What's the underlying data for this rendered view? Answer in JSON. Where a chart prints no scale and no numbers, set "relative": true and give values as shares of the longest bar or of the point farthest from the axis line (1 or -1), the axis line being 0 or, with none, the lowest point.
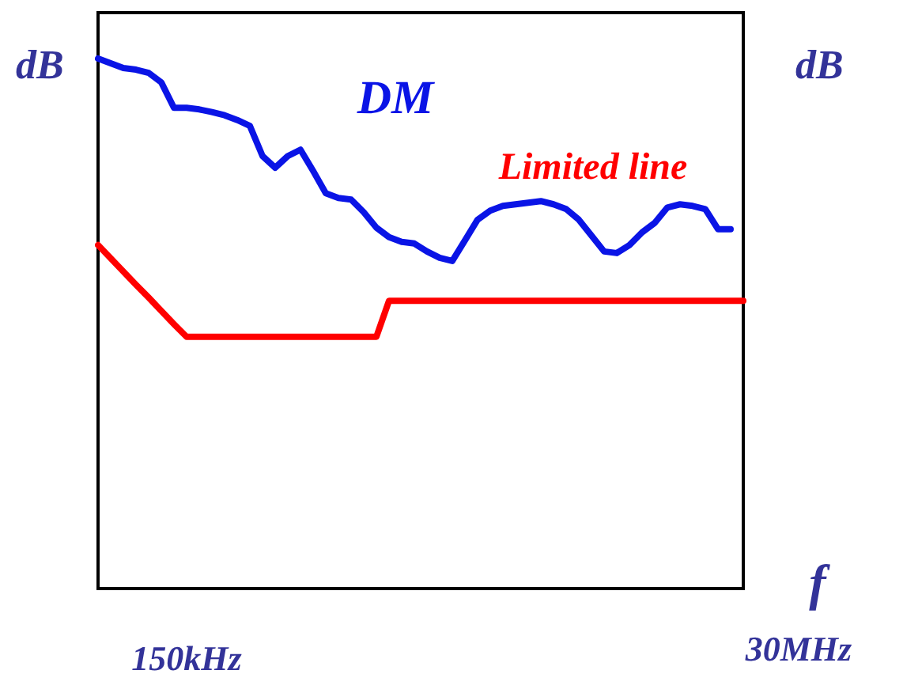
{
  "chart_data": {
    "type": "line",
    "relative": true,
    "xlabel": "f",
    "ylabel": "dB",
    "y2label": "dB",
    "annotations": [
      "150kHz",
      "30MHz"
    ],
    "categories": [
      null,
      null,
      null,
      null,
      null,
      null,
      null,
      null,
      null,
      null,
      null,
      null,
      null,
      null,
      null,
      null,
      null,
      null,
      null,
      null,
      null,
      null,
      null,
      null,
      null,
      null,
      null,
      null,
      null,
      null,
      null,
      null,
      null,
      null,
      null,
      null,
      null,
      null,
      null,
      null,
      null,
      null,
      null,
      null,
      null,
      null,
      null,
      null,
      null,
      null,
      null,
      null
    ],
    "series": [
      {
        "name": "DM",
        "color": "#0a14e6",
        "values": [
          1.0,
          0.991,
          0.982,
          0.979,
          0.973,
          0.955,
          0.907,
          0.907,
          0.904,
          0.899,
          0.893,
          0.884,
          0.873,
          0.816,
          0.794,
          0.816,
          0.828,
          0.788,
          0.746,
          0.737,
          0.734,
          0.71,
          0.681,
          0.663,
          0.654,
          0.651,
          0.636,
          0.624,
          0.618,
          0.657,
          0.696,
          0.713,
          0.722,
          0.725,
          0.728,
          0.731,
          0.725,
          0.716,
          0.696,
          0.666,
          0.636,
          0.633,
          0.648,
          0.672,
          0.69,
          0.719,
          0.725,
          0.722,
          0.716,
          0.678,
          0.678,
          null
        ]
      },
      {
        "name": "Limited line",
        "color": "#ff0000",
        "values": [
          0.648,
          0.623,
          0.598,
          0.573,
          0.549,
          0.524,
          0.499,
          0.475,
          0.475,
          0.475,
          0.475,
          0.475,
          0.475,
          0.475,
          0.475,
          0.475,
          0.475,
          0.475,
          0.475,
          0.475,
          0.475,
          0.475,
          0.475,
          0.543,
          0.543,
          0.543,
          0.543,
          0.543,
          0.543,
          0.543,
          0.543,
          0.543,
          0.543,
          0.543,
          0.543,
          0.543,
          0.543,
          0.543,
          0.543,
          0.543,
          0.543,
          0.543,
          0.543,
          0.543,
          0.543,
          0.543,
          0.543,
          0.543,
          0.543,
          0.543,
          0.543,
          0.543
        ]
      }
    ]
  }
}
